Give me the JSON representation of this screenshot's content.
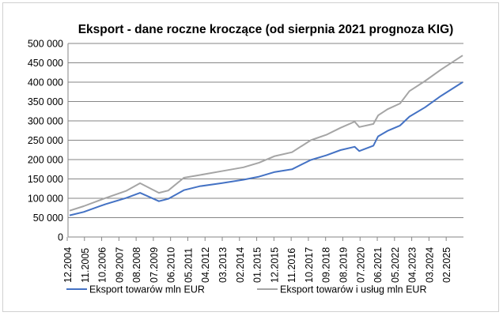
{
  "chart_data": {
    "type": "line",
    "title": "Eksport - dane roczne kroczące (od sierpnia 2021 prognoza KIG)",
    "xlabel": "",
    "ylabel": "",
    "ylim": [
      0,
      500000
    ],
    "yticks": [
      "0",
      "50 000",
      "100 000",
      "150 000",
      "200 000",
      "250 000",
      "300 000",
      "350 000",
      "400 000",
      "450 000",
      "500 000"
    ],
    "xticks": [
      "12.2004",
      "11.2005",
      "10.2006",
      "09.2007",
      "08.2008",
      "07.2009",
      "06.2010",
      "05.2011",
      "04.2012",
      "03.2013",
      "02.2014",
      "01.2015",
      "12.2015",
      "11.2016",
      "10.2017",
      "09.2018",
      "08.2019",
      "07.2020",
      "06.2021",
      "05.2022",
      "04.2023",
      "03.2024",
      "02.2025"
    ],
    "xrange": [
      "12.2004",
      "11.2025"
    ],
    "grid": true,
    "legend": "bottom",
    "x": [
      "12.2004",
      "09.2005",
      "11.2006",
      "12.2007",
      "09.2008",
      "09.2009",
      "03.2010",
      "01.2011",
      "11.2011",
      "01.2013",
      "03.2014",
      "01.2015",
      "11.2015",
      "10.2016",
      "10.2017",
      "08.2018",
      "05.2019",
      "02.2020",
      "05.2020",
      "02.2021",
      "05.2021",
      "11.2021",
      "07.2022",
      "01.2023",
      "11.2023",
      "09.2024",
      "11.2025"
    ],
    "series": [
      {
        "name": "Eksport towarów mln EUR",
        "color": "#4472c4",
        "values": [
          56000,
          64600,
          85000,
          100600,
          114000,
          92500,
          98600,
          121000,
          131000,
          139000,
          148000,
          156000,
          168000,
          175000,
          199000,
          211000,
          224500,
          233000,
          222000,
          236000,
          260000,
          274000,
          288000,
          311000,
          335000,
          364000,
          400000
        ]
      },
      {
        "name": "Eksport towarów i usług mln EUR",
        "color": "#a5a5a5",
        "values": [
          68000,
          79600,
          100600,
          119000,
          139000,
          114000,
          120000,
          153000,
          160000,
          170000,
          180000,
          192000,
          209000,
          219000,
          250000,
          264000,
          282000,
          298000,
          284000,
          292000,
          314000,
          330000,
          345000,
          377000,
          403000,
          432000,
          469000
        ]
      }
    ]
  },
  "colors": {
    "grid": "#868686",
    "axis": "#868686"
  }
}
